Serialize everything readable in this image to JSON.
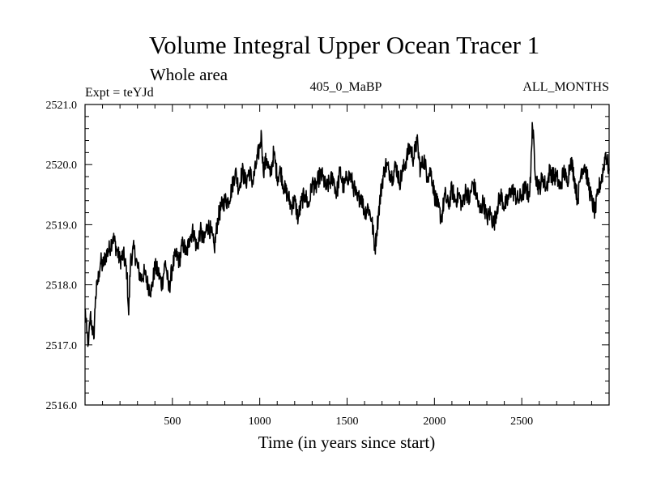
{
  "chart_data": {
    "type": "line",
    "title": "Volume Integral Upper Ocean Tracer 1",
    "subtitle": "Whole area",
    "left_label": "Expt = teYJd",
    "center_label": "405_0_MaBP",
    "right_label": "ALL_MONTHS",
    "xlabel": "Time (in years since start)",
    "ylabel": "",
    "xlim": [
      0,
      3000
    ],
    "ylim": [
      2516.0,
      2521.0
    ],
    "x_ticks": [
      500,
      1000,
      1500,
      2000,
      2500
    ],
    "x_tick_labels": [
      "500",
      "1000",
      "1500",
      "2000",
      "2500"
    ],
    "y_ticks": [
      2516.0,
      2517.0,
      2518.0,
      2519.0,
      2520.0,
      2521.0
    ],
    "y_tick_labels": [
      "2516.0",
      "2517.0",
      "2518.0",
      "2519.0",
      "2520.0",
      "2521.0"
    ],
    "grid": false,
    "series": [
      {
        "name": "Tracer 1",
        "x": [
          0,
          10,
          20,
          30,
          40,
          50,
          60,
          70,
          80,
          90,
          100,
          120,
          140,
          160,
          180,
          200,
          220,
          240,
          250,
          260,
          280,
          300,
          320,
          340,
          360,
          380,
          400,
          420,
          440,
          460,
          480,
          500,
          520,
          540,
          560,
          580,
          600,
          620,
          640,
          660,
          680,
          700,
          720,
          740,
          760,
          780,
          800,
          820,
          840,
          860,
          880,
          900,
          920,
          940,
          960,
          980,
          1000,
          1010,
          1020,
          1040,
          1060,
          1080,
          1100,
          1120,
          1140,
          1160,
          1180,
          1200,
          1220,
          1240,
          1260,
          1280,
          1300,
          1320,
          1340,
          1360,
          1380,
          1400,
          1420,
          1440,
          1460,
          1480,
          1500,
          1520,
          1540,
          1560,
          1580,
          1600,
          1620,
          1640,
          1660,
          1670,
          1680,
          1700,
          1720,
          1740,
          1760,
          1780,
          1800,
          1820,
          1840,
          1860,
          1880,
          1900,
          1920,
          1940,
          1960,
          1980,
          2000,
          2020,
          2040,
          2060,
          2080,
          2100,
          2120,
          2140,
          2160,
          2180,
          2200,
          2220,
          2240,
          2260,
          2280,
          2300,
          2320,
          2340,
          2360,
          2380,
          2400,
          2420,
          2440,
          2460,
          2480,
          2500,
          2520,
          2540,
          2550,
          2560,
          2580,
          2600,
          2620,
          2640,
          2660,
          2680,
          2700,
          2720,
          2740,
          2760,
          2780,
          2800,
          2820,
          2840,
          2860,
          2880,
          2900,
          2920,
          2940,
          2960,
          2980,
          3000
        ],
        "values": [
          2517.6,
          2517.2,
          2517.0,
          2517.5,
          2517.3,
          2517.1,
          2517.8,
          2518.0,
          2518.2,
          2518.4,
          2518.3,
          2518.5,
          2518.6,
          2518.8,
          2518.6,
          2518.4,
          2518.5,
          2518.2,
          2517.5,
          2518.4,
          2518.6,
          2518.3,
          2518.1,
          2518.2,
          2518.0,
          2517.9,
          2518.3,
          2518.2,
          2518.0,
          2518.4,
          2517.9,
          2518.3,
          2518.5,
          2518.4,
          2518.7,
          2518.5,
          2518.8,
          2518.9,
          2518.6,
          2518.9,
          2518.7,
          2519.0,
          2518.9,
          2518.6,
          2519.1,
          2519.3,
          2519.4,
          2519.4,
          2519.6,
          2519.9,
          2519.6,
          2519.9,
          2519.7,
          2519.9,
          2519.7,
          2520.0,
          2520.3,
          2520.5,
          2519.9,
          2520.1,
          2519.8,
          2520.2,
          2519.8,
          2519.9,
          2519.6,
          2519.5,
          2519.3,
          2519.4,
          2519.1,
          2519.4,
          2519.5,
          2519.3,
          2519.7,
          2519.6,
          2519.8,
          2519.8,
          2519.6,
          2519.7,
          2519.8,
          2519.5,
          2519.9,
          2519.6,
          2519.8,
          2519.8,
          2519.6,
          2519.4,
          2519.5,
          2519.2,
          2519.3,
          2519.1,
          2518.6,
          2518.9,
          2519.2,
          2519.7,
          2520.0,
          2519.9,
          2519.8,
          2520.0,
          2519.7,
          2519.9,
          2520.1,
          2520.3,
          2520.1,
          2520.4,
          2519.9,
          2520.1,
          2519.8,
          2519.9,
          2519.5,
          2519.3,
          2519.1,
          2519.5,
          2519.3,
          2519.6,
          2519.4,
          2519.5,
          2519.3,
          2519.6,
          2519.4,
          2519.7,
          2519.5,
          2519.2,
          2519.4,
          2519.1,
          2519.2,
          2519.0,
          2519.3,
          2519.5,
          2519.3,
          2519.4,
          2519.6,
          2519.5,
          2519.4,
          2519.5,
          2519.6,
          2519.5,
          2519.7,
          2520.7,
          2519.8,
          2519.6,
          2519.8,
          2519.6,
          2519.9,
          2519.8,
          2519.8,
          2519.6,
          2519.9,
          2519.7,
          2520.1,
          2519.8,
          2519.4,
          2519.9,
          2520.0,
          2519.7,
          2519.4,
          2519.2,
          2519.6,
          2519.8,
          2520.2,
          2519.9
        ]
      }
    ]
  }
}
